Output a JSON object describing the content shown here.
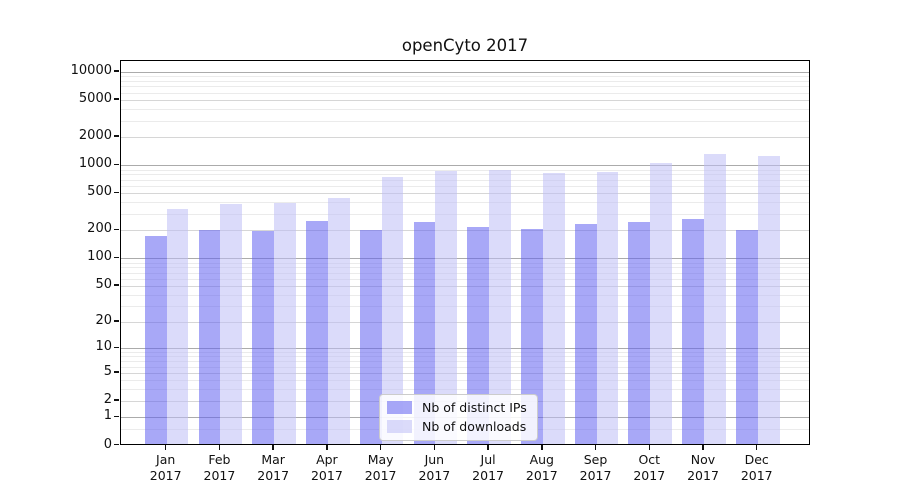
{
  "title": "openCyto 2017",
  "colors": {
    "distinct_ips_bar": "rgba(96,96,240,0.55)",
    "downloads_bar": "rgba(190,190,246,0.55)",
    "grid_power_of_ten": "#ababab",
    "grid_labeled_tick": "#d6d6d6",
    "grid_minor": "#ebebeb",
    "axis_frame": "#000000",
    "legend_border": "#cccccc",
    "text": "#111111"
  },
  "chart_data": {
    "type": "bar",
    "title": "openCyto 2017",
    "categories": [
      "Jan 2017",
      "Feb 2017",
      "Mar 2017",
      "Apr 2017",
      "May 2017",
      "Jun 2017",
      "Jul 2017",
      "Aug 2017",
      "Sep 2017",
      "Oct 2017",
      "Nov 2017",
      "Dec 2017"
    ],
    "series": [
      {
        "name": "Nb of distinct IPs",
        "values": [
          174,
          200,
          196,
          254,
          204,
          249,
          216,
          207,
          237,
          246,
          263,
          200
        ]
      },
      {
        "name": "Nb of downloads",
        "values": [
          343,
          382,
          394,
          447,
          750,
          878,
          886,
          836,
          842,
          1051,
          1336,
          1250
        ]
      }
    ],
    "y_ticks": [
      0,
      1,
      2,
      5,
      10,
      20,
      50,
      100,
      200,
      500,
      1000,
      2000,
      5000,
      10000
    ],
    "y_scale": "log10(value+1)",
    "ylim": [
      0,
      12800
    ],
    "xlabel": "",
    "ylabel": "",
    "grid": true,
    "legend_position": "lower center",
    "legend_entries": [
      "Nb of distinct IPs",
      "Nb of downloads"
    ]
  }
}
